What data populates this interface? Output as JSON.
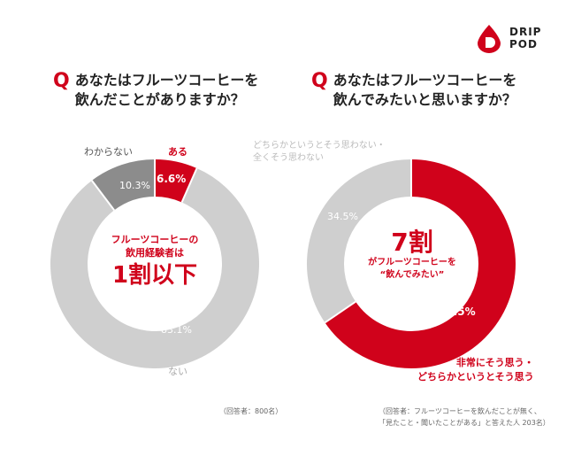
{
  "brand": {
    "line1": "DRIP",
    "line2": "POD",
    "color": "#d0021b"
  },
  "left": {
    "q_mark": "Q",
    "question": "あなたはフルーツコーヒーを\n飲んだことがありますか？",
    "center_line1": "フルーツコーヒーの",
    "center_line2": "飲用経験者は",
    "center_big": "1割以下",
    "label_yes": "ある",
    "label_unknown": "わからない",
    "label_no": "ない",
    "value_yes": "6.6%",
    "value_unknown": "10.3%",
    "value_no": "83.1%",
    "note": "（回答者：800名）"
  },
  "right": {
    "q_mark": "Q",
    "question": "あなたはフルーツコーヒーを\n飲んでみたいと思いますか？",
    "center_big": "7割",
    "center_line1": "がフルーツコーヒーを",
    "center_line2": "“飲んでみたい”",
    "label_no": "どちらかというとそう思わない・\n全くそう思わない",
    "label_yes": "非常にそう思う・\nどちらかというとそう思う",
    "value_no": "34.5%",
    "value_yes": "65.5%",
    "note": "（回答者：フルーツコーヒーを飲んだことが無く、\n「見たこと・聞いたことがある」と答えた人 203名）"
  },
  "chart_data": [
    {
      "type": "pie",
      "title": "あなたはフルーツコーヒーを飲んだことがありますか？",
      "categories": [
        "ある",
        "わからない",
        "ない"
      ],
      "values": [
        6.6,
        10.3,
        83.1
      ],
      "colors": [
        "#d0021b",
        "#8c8c8c",
        "#cfcfcf"
      ],
      "hole": true
    },
    {
      "type": "pie",
      "title": "あなたはフルーツコーヒーを飲んでみたいと思いますか？",
      "categories": [
        "非常にそう思う・どちらかというとそう思う",
        "どちらかというとそう思わない・全くそう思わない"
      ],
      "values": [
        65.5,
        34.5
      ],
      "colors": [
        "#d0021b",
        "#cfcfcf"
      ],
      "hole": true
    }
  ]
}
